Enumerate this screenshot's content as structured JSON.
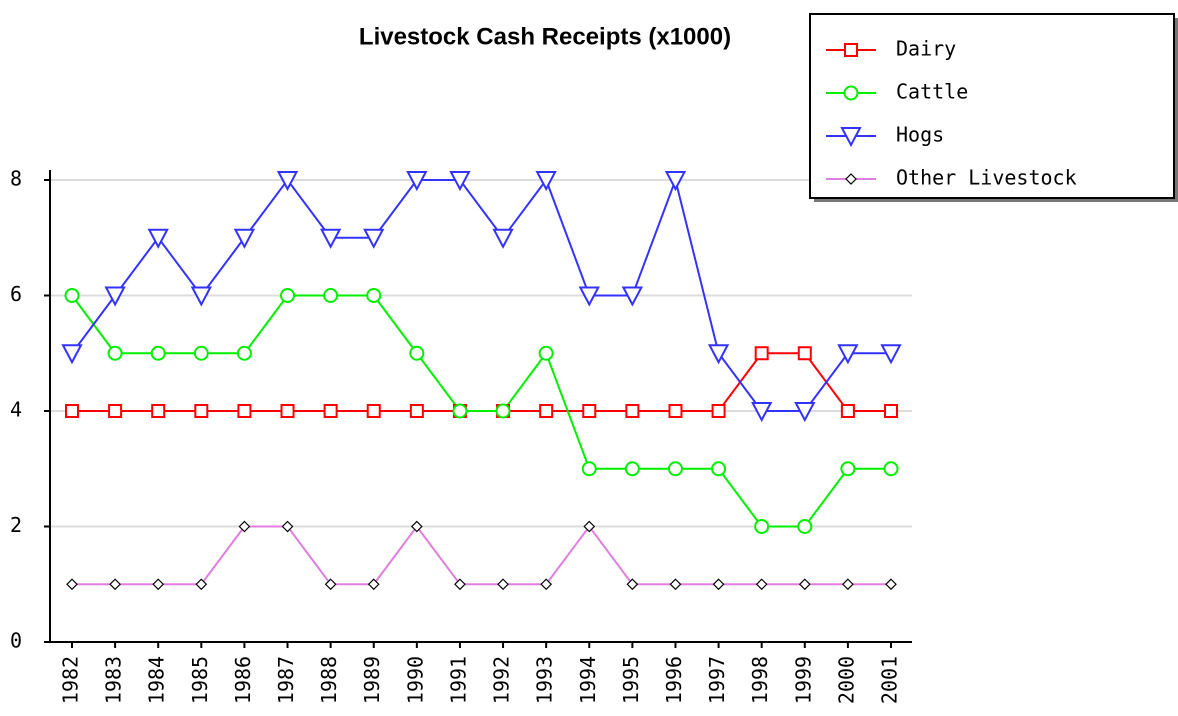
{
  "chart_data": {
    "type": "line",
    "title": "Livestock Cash Receipts (x1000)",
    "categories": [
      "1982",
      "1983",
      "1984",
      "1985",
      "1986",
      "1987",
      "1988",
      "1989",
      "1990",
      "1991",
      "1992",
      "1993",
      "1994",
      "1995",
      "1996",
      "1997",
      "1998",
      "1999",
      "2000",
      "2001"
    ],
    "series": [
      {
        "name": "Dairy",
        "color": "#ff0000",
        "marker": "square",
        "values": [
          4,
          4,
          4,
          4,
          4,
          4,
          4,
          4,
          4,
          4,
          4,
          4,
          4,
          4,
          4,
          4,
          5,
          5,
          4,
          4
        ]
      },
      {
        "name": "Cattle",
        "color": "#00ee00",
        "marker": "circle",
        "values": [
          6,
          5,
          5,
          5,
          5,
          6,
          6,
          6,
          5,
          4,
          4,
          5,
          3,
          3,
          3,
          3,
          2,
          2,
          3,
          3
        ]
      },
      {
        "name": "Hogs",
        "color": "#3333ff",
        "marker": "triangle-down",
        "values": [
          5,
          6,
          7,
          6,
          7,
          8,
          7,
          7,
          8,
          8,
          7,
          8,
          6,
          6,
          8,
          5,
          4,
          4,
          5,
          5
        ]
      },
      {
        "name": "Other Livestock",
        "color": "#e07ee0",
        "marker": "diamond",
        "values": [
          1,
          1,
          1,
          1,
          2,
          2,
          1,
          1,
          2,
          1,
          1,
          1,
          2,
          1,
          1,
          1,
          1,
          1,
          1,
          1
        ]
      }
    ],
    "ylim": [
      0,
      8
    ],
    "yticks": [
      0,
      2,
      4,
      6,
      8
    ],
    "grid": true,
    "legend": "top-right"
  }
}
